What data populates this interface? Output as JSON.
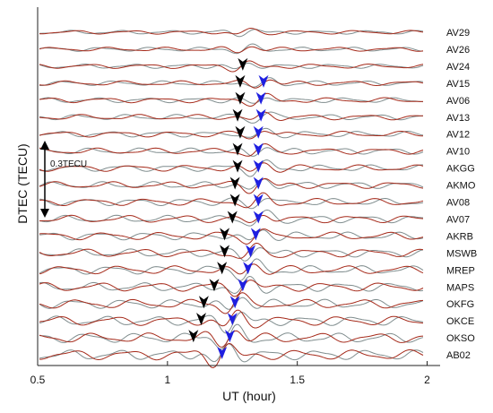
{
  "chart_data": {
    "type": "line",
    "xlabel": "UT (hour)",
    "ylabel": "DTEC (TECU)",
    "xlim": [
      0.5,
      2.05
    ],
    "xticks": [
      "0.5",
      "1",
      "1.5",
      "2"
    ],
    "xtick_values": [
      0.5,
      1,
      1.5,
      2
    ],
    "scale_bar_label": "0.3TECU",
    "scale_bar_value": 0.3,
    "stations": [
      "AV29",
      "AV26",
      "AV24",
      "AV15",
      "AV06",
      "AV13",
      "AV12",
      "AV10",
      "AKGG",
      "AKMO",
      "AV08",
      "AV07",
      "AKRB",
      "MSWB",
      "MREP",
      "MAPS",
      "OKFG",
      "OKCE",
      "OKSO",
      "AB02"
    ],
    "black_arrival_ut": [
      null,
      null,
      1.29,
      1.28,
      1.28,
      1.27,
      1.28,
      1.27,
      1.27,
      1.26,
      1.26,
      1.25,
      1.22,
      1.22,
      1.21,
      1.18,
      1.14,
      1.13,
      1.1,
      null
    ],
    "blue_arrival_ut": [
      null,
      null,
      null,
      1.37,
      1.36,
      1.36,
      1.35,
      1.35,
      1.35,
      1.35,
      1.35,
      1.35,
      1.34,
      1.32,
      1.31,
      1.29,
      1.26,
      1.25,
      1.24,
      1.21
    ],
    "series": [
      {
        "name": "",
        "color": "#a52a1a"
      },
      {
        "name": "",
        "color": "#7f8c8d"
      }
    ],
    "colors": {
      "red_trace": "#a52a1a",
      "gray_trace": "#7f8c8d",
      "black_arrow": "#000000",
      "blue_arrow": "#1f1fe0"
    }
  }
}
